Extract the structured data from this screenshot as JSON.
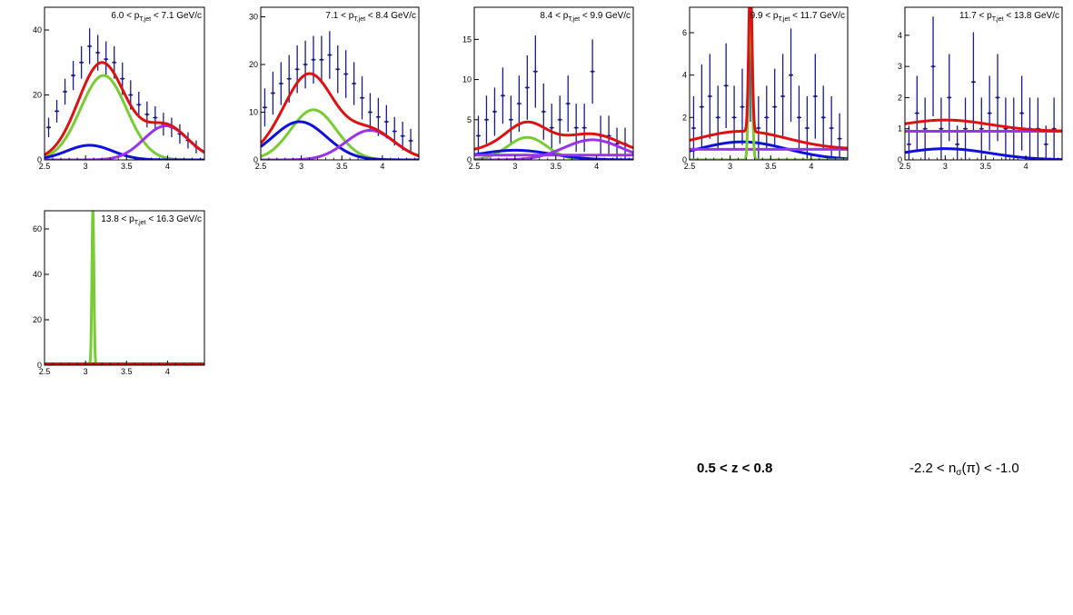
{
  "page": {
    "z_cut": "0.5 < z < 0.8",
    "nsigma_cut": {
      "prefix": "-2.2 < n",
      "sub": "σ",
      "suffix": "(π) < -1.0"
    }
  },
  "colors": {
    "data": "#1a1a8c",
    "total": "#dd1111",
    "comp_blue": "#1010dd",
    "comp_green": "#77cc33",
    "comp_purple": "#9933ee",
    "axis": "#000000"
  },
  "chart_data": [
    {
      "type": "line",
      "title": {
        "low": "6.0",
        "high": "7.1",
        "unit": "GeV/c"
      },
      "xlim": [
        2.5,
        4.45
      ],
      "ylim": [
        0,
        47
      ],
      "xticks": [
        2.5,
        3,
        3.5,
        4
      ],
      "xtick_labels": [
        "2.5",
        "3",
        "3.5",
        "4"
      ],
      "yticks": [
        0,
        20,
        40
      ],
      "ytick_labels": [
        "0",
        "20",
        "40"
      ],
      "points": {
        "x": [
          2.55,
          2.65,
          2.75,
          2.85,
          2.95,
          3.05,
          3.15,
          3.25,
          3.35,
          3.45,
          3.55,
          3.65,
          3.75,
          3.85,
          3.95,
          4.05,
          4.15,
          4.25,
          4.35
        ],
        "y": [
          10,
          15,
          21,
          26,
          30,
          35,
          33,
          31,
          30,
          25,
          20,
          17,
          14,
          13,
          11,
          10,
          8,
          6,
          4
        ],
        "err": [
          3,
          3.5,
          4,
          4.5,
          5,
          5.5,
          5.5,
          5.5,
          5,
          5,
          4.5,
          4,
          4,
          3.5,
          3.5,
          3,
          3,
          2.5,
          2
        ]
      },
      "components": [
        {
          "name": "total",
          "color_key": "total",
          "shape": "sum"
        },
        {
          "name": "green",
          "color_key": "comp_green",
          "shape": "gauss",
          "amp": 26,
          "mu": 3.22,
          "sigma": 0.28
        },
        {
          "name": "blue",
          "color_key": "comp_blue",
          "shape": "gauss",
          "amp": 4.5,
          "mu": 3.05,
          "sigma": 0.28
        },
        {
          "name": "purple",
          "color_key": "comp_purple",
          "shape": "gauss",
          "amp": 10.5,
          "mu": 3.98,
          "sigma": 0.27
        }
      ]
    },
    {
      "type": "line",
      "title": {
        "low": "7.1",
        "high": "8.4",
        "unit": "GeV/c"
      },
      "xlim": [
        2.5,
        4.45
      ],
      "ylim": [
        0,
        32
      ],
      "xticks": [
        2.5,
        3,
        3.5,
        4
      ],
      "xtick_labels": [
        "2.5",
        "3",
        "3.5",
        "4"
      ],
      "yticks": [
        0,
        10,
        20,
        30
      ],
      "ytick_labels": [
        "0",
        "10",
        "20",
        "30"
      ],
      "points": {
        "x": [
          2.55,
          2.65,
          2.75,
          2.85,
          2.95,
          3.05,
          3.15,
          3.25,
          3.35,
          3.45,
          3.55,
          3.65,
          3.75,
          3.85,
          3.95,
          4.05,
          4.15,
          4.25,
          4.35
        ],
        "y": [
          11,
          14,
          16,
          17,
          19,
          20,
          21,
          21,
          22,
          19,
          18,
          16,
          13,
          10,
          9,
          8,
          6,
          5,
          4
        ],
        "err": [
          4,
          4.5,
          4.5,
          5,
          5,
          5,
          5,
          5,
          5,
          5,
          5,
          4.5,
          4.5,
          4,
          4,
          3.5,
          3,
          3,
          2.5
        ]
      },
      "components": [
        {
          "name": "total",
          "color_key": "total",
          "shape": "sum"
        },
        {
          "name": "green",
          "color_key": "comp_green",
          "shape": "gauss",
          "amp": 10.5,
          "mu": 3.15,
          "sigma": 0.28
        },
        {
          "name": "blue",
          "color_key": "comp_blue",
          "shape": "gauss",
          "amp": 8,
          "mu": 2.98,
          "sigma": 0.33
        },
        {
          "name": "purple",
          "color_key": "comp_purple",
          "shape": "gauss",
          "amp": 6.2,
          "mu": 3.85,
          "sigma": 0.3
        }
      ]
    },
    {
      "type": "line",
      "title": {
        "low": "8.4",
        "high": "9.9",
        "unit": "GeV/c"
      },
      "xlim": [
        2.5,
        4.45
      ],
      "ylim": [
        0,
        19
      ],
      "xticks": [
        2.5,
        3,
        3.5,
        4
      ],
      "xtick_labels": [
        "2.5",
        "3",
        "3.5",
        "4"
      ],
      "yticks": [
        0,
        5,
        10,
        15
      ],
      "ytick_labels": [
        "0",
        "5",
        "10",
        "15"
      ],
      "points": {
        "x": [
          2.55,
          2.65,
          2.75,
          2.85,
          2.95,
          3.05,
          3.15,
          3.25,
          3.35,
          3.45,
          3.55,
          3.65,
          3.75,
          3.85,
          3.95,
          4.05,
          4.15,
          4.25,
          4.35
        ],
        "y": [
          3,
          5,
          6,
          8,
          5,
          7,
          9,
          11,
          6,
          4,
          5,
          7,
          4,
          4,
          11,
          3,
          3,
          2,
          2
        ],
        "err": [
          2.5,
          3,
          3,
          3.5,
          3,
          3.5,
          4,
          4.5,
          3.5,
          3,
          3,
          3.5,
          3,
          3,
          4,
          2.5,
          2.5,
          2,
          2
        ]
      },
      "components": [
        {
          "name": "total",
          "color_key": "total",
          "shape": "sum"
        },
        {
          "name": "green",
          "color_key": "comp_green",
          "shape": "gauss",
          "amp": 2.8,
          "mu": 3.15,
          "sigma": 0.24
        },
        {
          "name": "blue",
          "color_key": "comp_blue",
          "shape": "gauss",
          "amp": 1.2,
          "mu": 3.0,
          "sigma": 0.45
        },
        {
          "name": "purple",
          "color_key": "comp_purple",
          "shape": "gauss",
          "amp": 2.5,
          "mu": 3.95,
          "sigma": 0.35
        },
        {
          "name": "flat",
          "color_key": "comp_purple",
          "shape": "const",
          "value": 0.6
        }
      ]
    },
    {
      "type": "line",
      "title": {
        "low": "9.9",
        "high": "11.7",
        "unit": "GeV/c"
      },
      "xlim": [
        2.5,
        4.45
      ],
      "ylim": [
        0,
        7.2
      ],
      "xticks": [
        2.5,
        3,
        3.5,
        4
      ],
      "xtick_labels": [
        "2.5",
        "3",
        "3.5",
        "4"
      ],
      "yticks": [
        0,
        2,
        4,
        6
      ],
      "ytick_labels": [
        "0",
        "2",
        "4",
        "6"
      ],
      "points": {
        "x": [
          2.55,
          2.65,
          2.75,
          2.85,
          2.95,
          3.05,
          3.15,
          3.25,
          3.35,
          3.45,
          3.55,
          3.65,
          3.75,
          3.85,
          3.95,
          4.05,
          4.15,
          4.25,
          4.35
        ],
        "y": [
          1.5,
          2.5,
          3,
          2,
          3.5,
          2,
          2.5,
          4,
          1.5,
          2,
          2.5,
          3,
          4,
          2,
          1.5,
          3,
          2,
          1.5,
          1
        ],
        "err": [
          1.5,
          2,
          2,
          1.5,
          2,
          1.5,
          1.8,
          2.2,
          1.5,
          1.5,
          1.8,
          2,
          2.2,
          1.5,
          1.5,
          2,
          1.5,
          1.5,
          1.2
        ]
      },
      "components": [
        {
          "name": "total",
          "color_key": "total",
          "shape": "sum"
        },
        {
          "name": "blue",
          "color_key": "comp_blue",
          "shape": "gauss",
          "amp": 0.85,
          "mu": 3.15,
          "sigma": 0.55
        },
        {
          "name": "flat",
          "color_key": "comp_purple",
          "shape": "const",
          "value": 0.5
        },
        {
          "name": "green",
          "color_key": "comp_green",
          "shape": "gauss",
          "amp": 7.5,
          "mu": 3.25,
          "sigma": 0.02
        }
      ]
    },
    {
      "type": "line",
      "title": {
        "low": "11.7",
        "high": "13.8",
        "unit": "GeV/c"
      },
      "xlim": [
        2.5,
        4.45
      ],
      "ylim": [
        0,
        4.9
      ],
      "xticks": [
        2.5,
        3,
        3.5,
        4
      ],
      "xtick_labels": [
        "2.5",
        "3",
        "3.5",
        "4"
      ],
      "yticks": [
        0,
        1,
        2,
        3,
        4
      ],
      "ytick_labels": [
        "0",
        "1",
        "2",
        "3",
        "4"
      ],
      "points": {
        "x": [
          2.55,
          2.65,
          2.75,
          2.85,
          2.95,
          3.05,
          3.15,
          3.25,
          3.35,
          3.45,
          3.55,
          3.65,
          3.75,
          3.85,
          3.95,
          4.05,
          4.15,
          4.25,
          4.35
        ],
        "y": [
          0.5,
          1.5,
          1,
          3,
          1,
          2,
          0.5,
          1,
          2.5,
          1,
          1.5,
          2,
          1,
          1,
          1.5,
          1,
          1,
          0.5,
          1
        ],
        "err": [
          0.6,
          1.2,
          1,
          1.6,
          1,
          1.4,
          0.6,
          1,
          1.6,
          1,
          1.2,
          1.4,
          1,
          1,
          1.2,
          1,
          1,
          0.6,
          1
        ]
      },
      "components": [
        {
          "name": "total",
          "color_key": "total",
          "shape": "sum"
        },
        {
          "name": "flat",
          "color_key": "comp_purple",
          "shape": "const",
          "value": 0.92
        },
        {
          "name": "blue",
          "color_key": "comp_blue",
          "shape": "gauss",
          "amp": 0.36,
          "mu": 3.0,
          "sigma": 0.55
        }
      ]
    },
    {
      "type": "line",
      "title": {
        "low": "13.8",
        "high": "16.3",
        "unit": "GeV/c"
      },
      "xlim": [
        2.5,
        4.45
      ],
      "ylim": [
        0,
        68
      ],
      "xticks": [
        2.5,
        3,
        3.5,
        4
      ],
      "xtick_labels": [
        "2.5",
        "3",
        "3.5",
        "4"
      ],
      "yticks": [
        0,
        20,
        40,
        60
      ],
      "ytick_labels": [
        "0",
        "20",
        "40",
        "60"
      ],
      "points": {
        "x": [],
        "y": [],
        "err": []
      },
      "components": [
        {
          "name": "total",
          "color_key": "total",
          "shape": "const",
          "value": 0.6
        },
        {
          "name": "flat",
          "color_key": "comp_purple",
          "shape": "const",
          "value": 0.6
        },
        {
          "name": "green",
          "color_key": "comp_green",
          "shape": "gauss",
          "amp": 70,
          "mu": 3.09,
          "sigma": 0.012
        }
      ]
    }
  ]
}
